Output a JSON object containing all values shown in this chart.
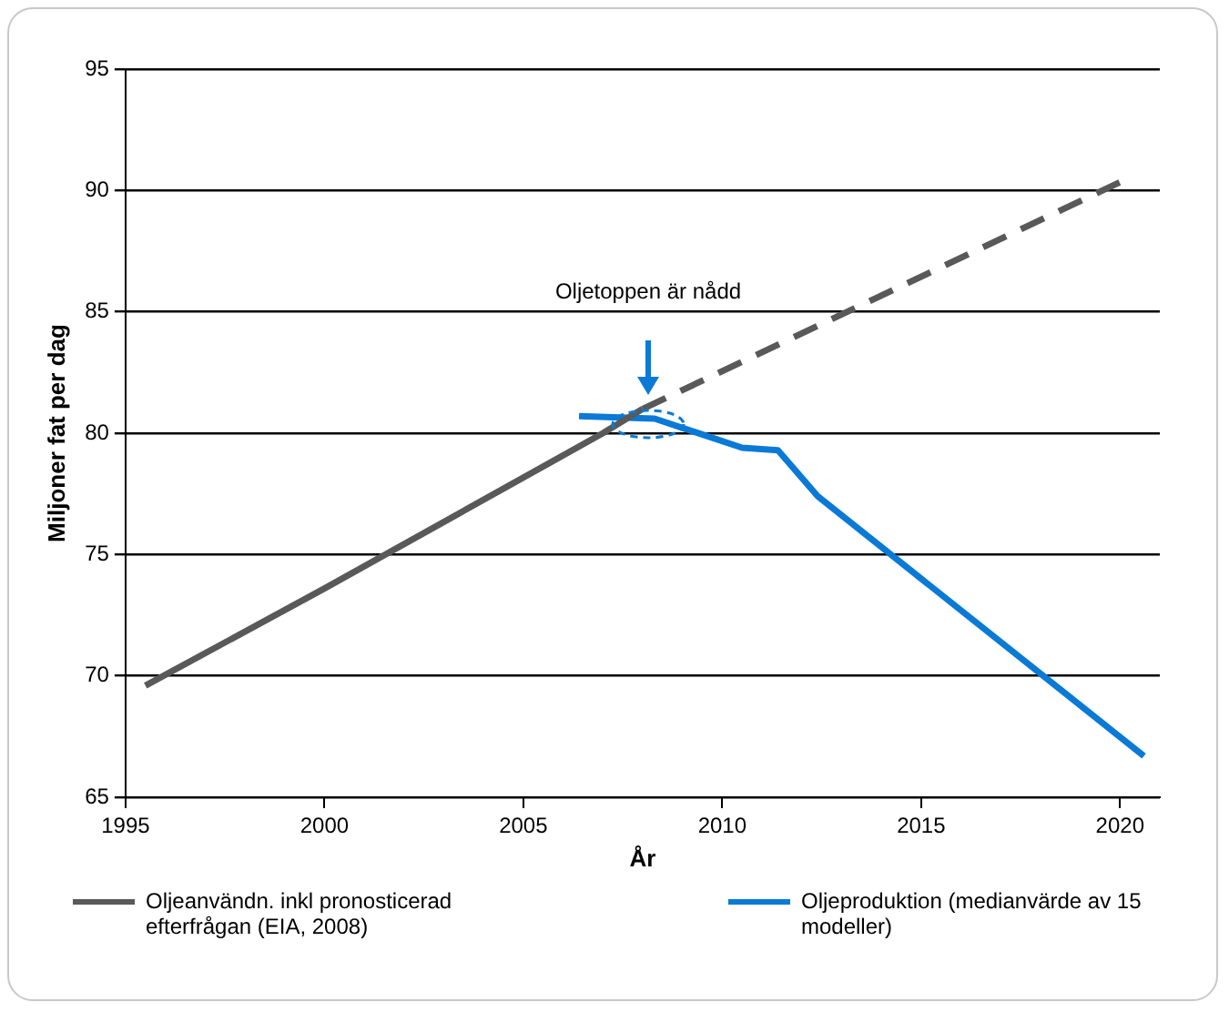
{
  "chart_data": {
    "type": "line",
    "xlabel": "År",
    "ylabel": "Miljoner fat per dag",
    "xlim": [
      1995,
      2021
    ],
    "xticks": [
      1995,
      2000,
      2005,
      2010,
      2015,
      2020
    ],
    "ylim": [
      65,
      95
    ],
    "yticks": [
      65,
      70,
      75,
      80,
      85,
      90,
      95
    ],
    "grid": "y",
    "legend": "bottom",
    "marker": "none",
    "annotations": [
      "Oljetoppen är nådd"
    ],
    "series": [
      {
        "name": "Oljeanvändn. inkl pronosticerad efterfrågan (EIA, 2008)",
        "color": "#595959",
        "line_style": "solid",
        "x": [
          1995.5,
          2000,
          2007,
          2008
        ],
        "values": [
          69.6,
          73.6,
          80,
          81
        ]
      },
      {
        "color": "#595959",
        "line_style": "dashed",
        "x": [
          2008,
          2012.5,
          2020.2
        ],
        "values": [
          81,
          84.5,
          90.5
        ]
      },
      {
        "name": "Oljeproduktion (medianvärde av 15 modeller)",
        "color": "#0a7ad6",
        "line_style": "solid",
        "x": [
          2006.4,
          2008.3,
          2010.5,
          2011.4,
          2012.4,
          2020.6
        ],
        "values": [
          80.7,
          80.6,
          79.4,
          79.3,
          77.4,
          66.7
        ]
      }
    ]
  }
}
